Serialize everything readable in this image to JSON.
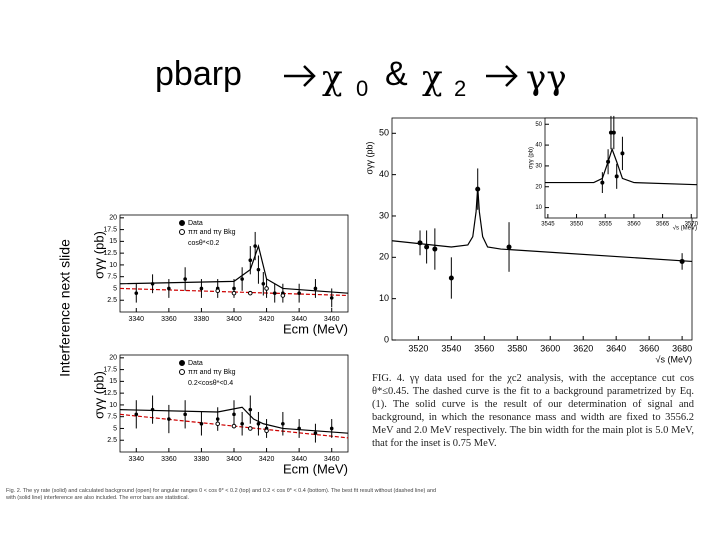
{
  "title": {
    "start": "pbarp",
    "chi0": "χ",
    "sub0": "0",
    "amp": "&",
    "chi2": "χ",
    "sub2": "2",
    "end": "γγ"
  },
  "side_label": "Interference next slide",
  "left_figure": {
    "panels": [
      {
        "xlim": [
          3330,
          3470
        ],
        "ylim": [
          0,
          20.6
        ],
        "xticks": [
          3340,
          3360,
          3380,
          3400,
          3420,
          3440,
          3460
        ],
        "yticks": [
          2.5,
          5,
          7.5,
          10,
          12.5,
          15,
          17.5,
          20
        ],
        "x_label": "Ecm (MeV)",
        "y_label": "σγγ (pb)",
        "legend": [
          "Data",
          "ππ and πγ Bkg"
        ],
        "cut": "cosθ*<0.2",
        "points": {
          "x": [
            3340,
            3350,
            3360,
            3370,
            3380,
            3390,
            3400,
            3405,
            3410,
            3413,
            3415,
            3418,
            3420,
            3425,
            3430,
            3440,
            3450,
            3460
          ],
          "y": [
            4,
            6,
            5,
            7,
            5,
            5,
            5,
            7,
            11,
            14,
            9,
            6,
            5,
            4,
            4,
            4,
            5,
            3
          ],
          "err": [
            2,
            2,
            2,
            2.5,
            2,
            2,
            2,
            2.5,
            3,
            3,
            3,
            2.5,
            2,
            2,
            2,
            2,
            2,
            2
          ]
        },
        "open_points": {
          "x": [
            3390,
            3400,
            3410,
            3420,
            3430
          ],
          "y": [
            4.5,
            4,
            4,
            5,
            3.5
          ]
        },
        "curves": [
          {
            "x": [
              3330,
              3400,
              3410,
              3415,
              3420,
              3430,
              3470
            ],
            "y": [
              6,
              6.5,
              9,
              14,
              7,
              5,
              4
            ],
            "color": "#000000",
            "dashed": false
          },
          {
            "x": [
              3330,
              3470
            ],
            "y": [
              5,
              3.5
            ],
            "color": "#cc0000",
            "dashed": true
          }
        ]
      },
      {
        "xlim": [
          3330,
          3470
        ],
        "ylim": [
          0,
          20.6
        ],
        "xticks": [
          3340,
          3360,
          3380,
          3400,
          3420,
          3440,
          3460
        ],
        "yticks": [
          2.5,
          5,
          7.5,
          10,
          12.5,
          15,
          17.5,
          20
        ],
        "x_label": "Ecm (MeV)",
        "y_label": "σγγ (pb)",
        "legend": [
          "Data",
          "ππ and πγ Bkg"
        ],
        "cut": "0.2<cosθ*<0.4",
        "points": {
          "x": [
            3340,
            3350,
            3360,
            3370,
            3380,
            3390,
            3400,
            3405,
            3410,
            3415,
            3420,
            3430,
            3440,
            3450,
            3460
          ],
          "y": [
            8,
            9,
            7,
            8,
            6,
            7,
            8,
            6,
            9,
            6,
            5,
            6,
            5,
            4,
            5
          ],
          "err": [
            3,
            3,
            3,
            3,
            2.5,
            2.5,
            3,
            2.5,
            3,
            2.5,
            2,
            2.5,
            2,
            2,
            2
          ]
        },
        "open_points": {
          "x": [
            3390,
            3400,
            3410,
            3420
          ],
          "y": [
            6,
            5.5,
            5,
            4.5
          ]
        },
        "curves": [
          {
            "x": [
              3330,
              3390,
              3405,
              3412,
              3418,
              3430,
              3470
            ],
            "y": [
              9,
              8.5,
              9.5,
              7,
              6,
              5,
              4
            ],
            "color": "#000000",
            "dashed": false
          },
          {
            "x": [
              3330,
              3470
            ],
            "y": [
              8,
              3
            ],
            "color": "#cc0000",
            "dashed": true
          }
        ]
      }
    ],
    "caption": "Fig. 2. The γγ rate (solid) and calculated background (open) for angular ranges 0 < cos θ* < 0.2 (top) and 0.2 < cos θ* < 0.4 (bottom). The best fit result without (dashed line) and with (solid line) interference are also included. The error bars are statistical."
  },
  "right_figure": {
    "main": {
      "xlim": [
        3504,
        3686
      ],
      "ylim": [
        0,
        53.7
      ],
      "xticks": [
        3520,
        3540,
        3560,
        3580,
        3600,
        3620,
        3640,
        3660,
        3680
      ],
      "yticks": [
        0,
        10,
        20,
        30,
        40,
        50
      ],
      "x_label": "√s (MeV)",
      "y_label": "σγγ (pb)",
      "points": {
        "x": [
          3521,
          3525,
          3530,
          3540,
          3556,
          3575,
          3680
        ],
        "y": [
          23.5,
          22.5,
          22,
          15,
          36.5,
          22.5,
          19
        ],
        "err": [
          3,
          4,
          5,
          5,
          5,
          6,
          2
        ]
      },
      "curves": [
        {
          "x": [
            3504,
            3540,
            3550,
            3553,
            3555,
            3556,
            3557,
            3559,
            3562,
            3570,
            3686
          ],
          "y": [
            24,
            22.5,
            23,
            25,
            31,
            37,
            31,
            25,
            22.5,
            22,
            19
          ],
          "color": "#000000",
          "dashed": false
        }
      ]
    },
    "inset": {
      "xlim": [
        3544.5,
        3571
      ],
      "ylim": [
        5,
        53
      ],
      "xticks": [
        3545,
        3550,
        3555,
        3560,
        3565,
        3570
      ],
      "yticks": [
        10,
        20,
        30,
        40,
        50
      ],
      "x_label": "√s (MeV)",
      "y_label": "σγγ (pb)",
      "points": {
        "x": [
          3554.5,
          3555.5,
          3556,
          3556.5,
          3557,
          3558
        ],
        "y": [
          22,
          32,
          46,
          46,
          25,
          36
        ],
        "err": [
          5,
          6,
          8,
          8,
          6,
          8
        ]
      },
      "curves": [
        {
          "x": [
            3544.5,
            3553,
            3554.5,
            3555.5,
            3556.2,
            3557,
            3558,
            3560,
            3571
          ],
          "y": [
            22,
            22,
            24,
            32,
            38,
            32,
            24,
            22,
            21
          ],
          "color": "#000000",
          "dashed": false
        }
      ]
    },
    "caption": "FIG. 4. γγ data used for the χc2 analysis, with the acceptance cut cos θ*≤0.45. The dashed curve is the fit to a background parametrized by Eq. (1). The solid curve is the result of our determination of signal and background, in which the resonance mass and width are fixed to 3556.2 MeV and 2.0 MeV respectively. The bin width for the main plot is 5.0 MeV, that for the inset is 0.75 MeV."
  }
}
